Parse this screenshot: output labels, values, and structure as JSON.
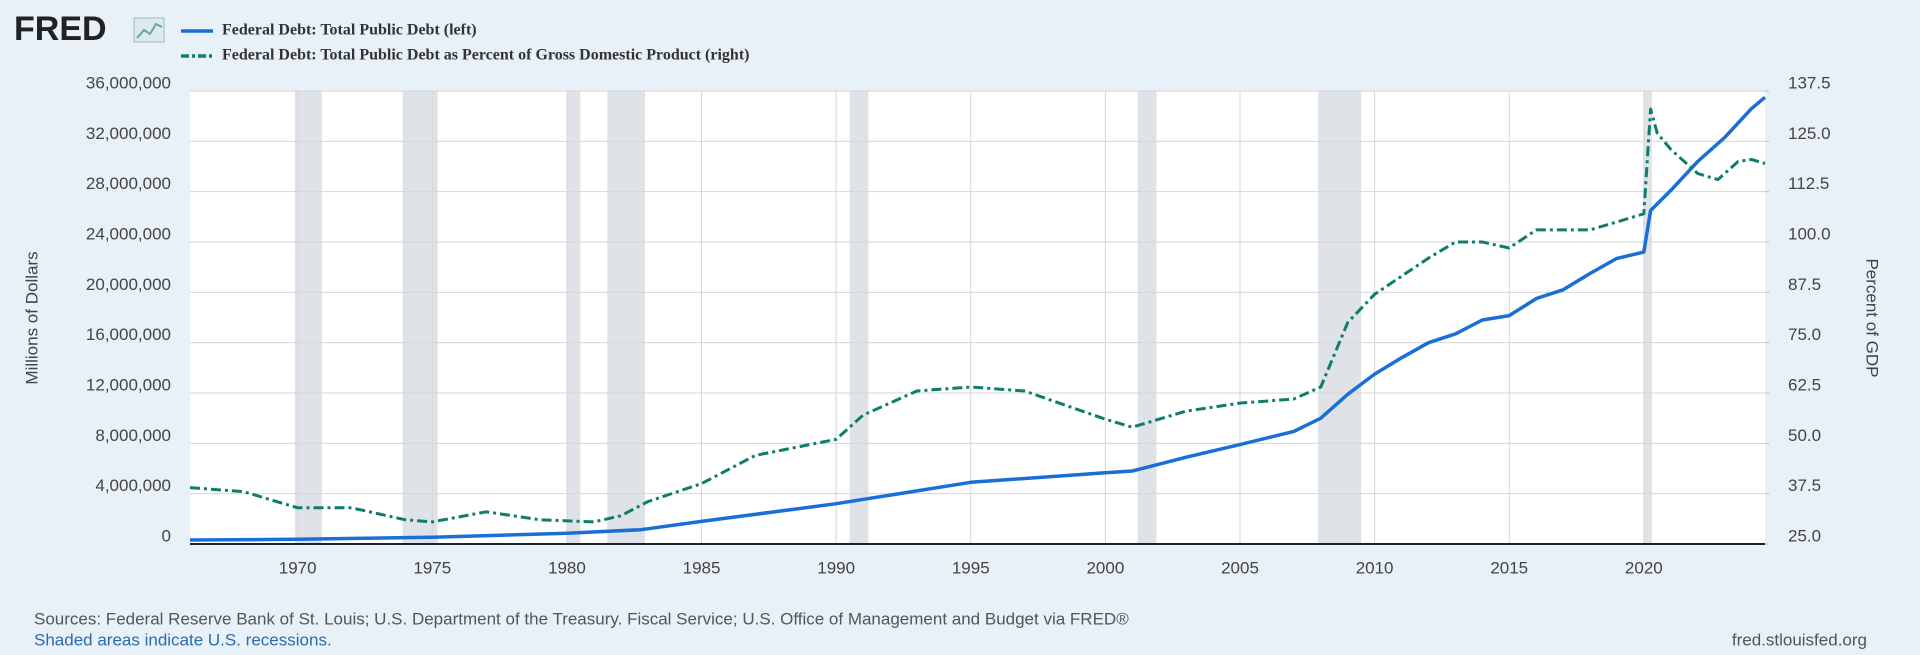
{
  "logo": "FRED",
  "chart_data": {
    "type": "line",
    "y_label": "Millions of Dollars",
    "y2_label": "Percent of GDP",
    "source": "Sources: Federal Reserve Bank of St. Louis; U.S. Department of the Treasury. Fiscal Service; U.S. Office of Management and Budget via FRED®",
    "note": "Shaded areas indicate U.S. recessions.",
    "site": "fred.stlouisfed.org",
    "grid": true,
    "xlim": [
      1966,
      2024.5
    ],
    "xticks": [
      1970,
      1975,
      1980,
      1985,
      1990,
      1995,
      2000,
      2005,
      2010,
      2015,
      2020
    ],
    "ylim": [
      0,
      36000000
    ],
    "yticks": [
      0,
      {
        "value": 4000000,
        "label": "4,000,000"
      },
      {
        "value": 8000000,
        "label": "8,000,000"
      },
      {
        "value": 12000000,
        "label": "12,000,000"
      },
      {
        "value": 16000000,
        "label": "16,000,000"
      },
      {
        "value": 20000000,
        "label": "20,000,000"
      },
      {
        "value": 24000000,
        "label": "24,000,000"
      },
      {
        "value": 28000000,
        "label": "28,000,000"
      },
      {
        "value": 32000000,
        "label": "32,000,000"
      },
      {
        "value": 36000000,
        "label": "36,000,000"
      }
    ],
    "y2lim": [
      25,
      137.5
    ],
    "y2ticks": [
      {
        "value": 25,
        "label": "25.0"
      },
      37.5,
      {
        "value": 50,
        "label": "50.0"
      },
      62.5,
      {
        "value": 75,
        "label": "75.0"
      },
      87.5,
      {
        "value": 100,
        "label": "100.0"
      },
      112.5,
      {
        "value": 125,
        "label": "125.0"
      },
      137.5
    ],
    "recessions": [
      [
        1969.9,
        1970.9
      ],
      [
        1973.9,
        1975.2
      ],
      [
        1980.0,
        1980.5
      ],
      [
        1981.5,
        1982.9
      ],
      [
        1990.5,
        1991.2
      ],
      [
        2001.2,
        2001.9
      ],
      [
        2007.9,
        2009.5
      ],
      [
        2020.0,
        2020.3
      ]
    ],
    "series": [
      {
        "name": "Federal Debt: Total Public Debt (left)",
        "color": "#1a6fd6",
        "axis": "y",
        "style": "solid",
        "x": [
          1966,
          1970,
          1975,
          1980,
          1982.75,
          1985,
          1990,
          1995,
          2000,
          2001,
          2003,
          2005,
          2007,
          2008,
          2009,
          2010,
          2011,
          2012,
          2013,
          2014,
          2015,
          2016,
          2017,
          2018,
          2019,
          2020,
          2020.25,
          2021,
          2022,
          2023,
          2024,
          2024.5
        ],
        "values": [
          320000,
          370000,
          530000,
          860000,
          1140000,
          1800000,
          3200000,
          4900000,
          5660000,
          5800000,
          6900000,
          7900000,
          8950000,
          10000000,
          11900000,
          13500000,
          14800000,
          16000000,
          16700000,
          17800000,
          18150000,
          19500000,
          20200000,
          21500000,
          22700000,
          23200000,
          26500000,
          28100000,
          30400000,
          32300000,
          34600000,
          35500000
        ]
      },
      {
        "name": "Federal Debt: Total Public Debt as Percent of Gross Domestic Product (right)",
        "color": "#0e7d6c",
        "axis": "y2",
        "style": "dashdot",
        "x": [
          1966,
          1968,
          1970,
          1972,
          1974,
          1975,
          1977,
          1979,
          1981,
          1982,
          1983,
          1985,
          1987,
          1990,
          1991,
          1993,
          1995,
          1997,
          2000,
          2001,
          2003,
          2005,
          2007,
          2008,
          2009,
          2010,
          2012,
          2013,
          2014,
          2015,
          2016,
          2018,
          2019,
          2020,
          2020.25,
          2020.5,
          2021,
          2022,
          2022.75,
          2023.5,
          2024,
          2024.5
        ],
        "values": [
          39,
          38,
          34,
          34,
          31,
          30.5,
          33,
          31,
          30.5,
          32,
          35.5,
          40,
          47,
          51,
          57,
          63,
          64,
          63,
          56,
          54,
          58,
          60,
          61,
          64,
          80,
          87,
          96,
          100,
          100,
          98.5,
          103,
          103,
          105,
          107,
          133,
          127,
          123,
          117,
          115.5,
          120,
          120.5,
          119.5
        ]
      }
    ]
  }
}
